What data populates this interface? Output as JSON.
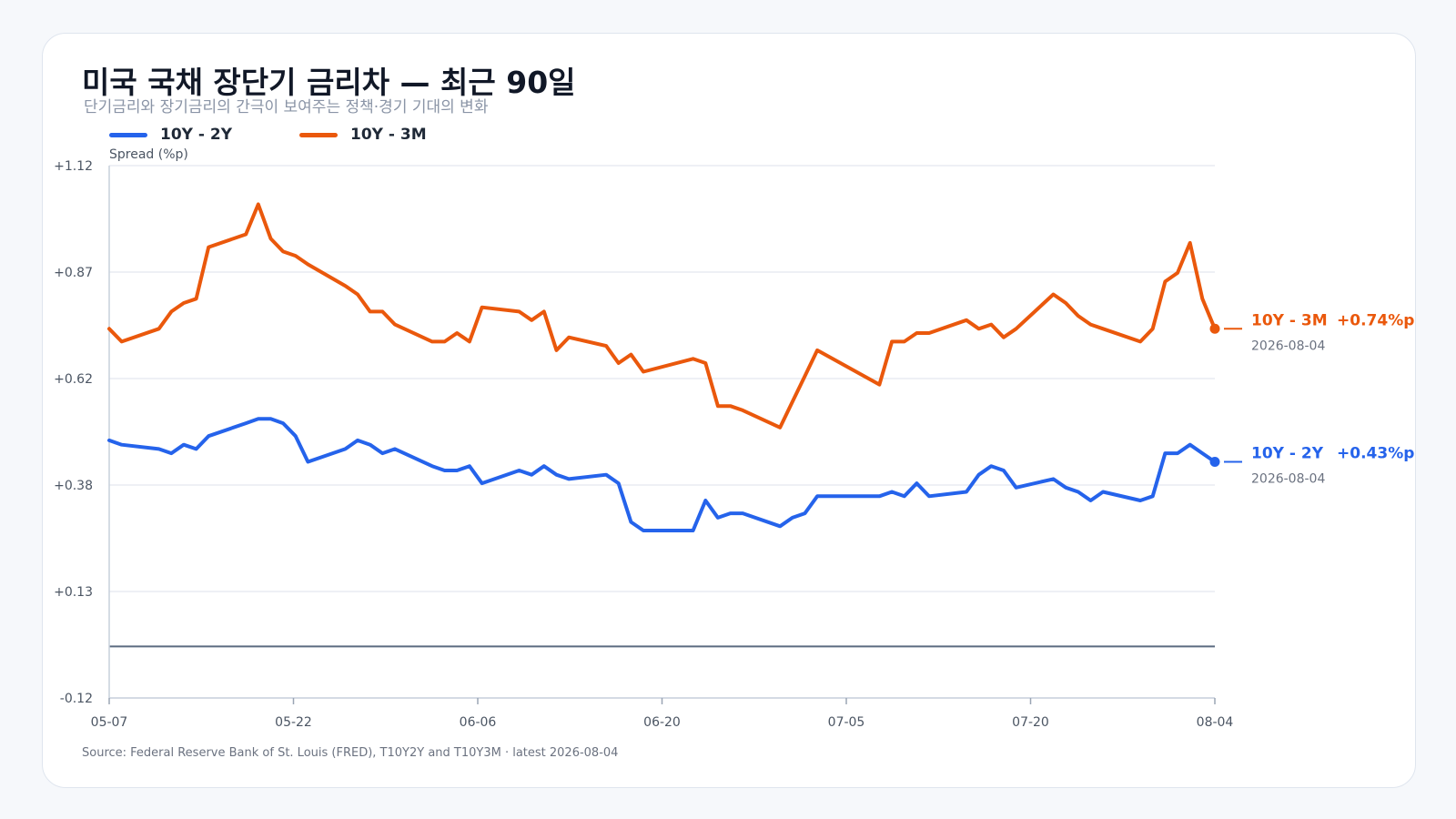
{
  "title": "미국 국채 장단기 금리차 — 최근 90일",
  "subtitle": "단기금리와 장기금리의 간극이 보여주는 정책·경기 기대의 변화",
  "source": "Source: Federal Reserve Bank of St. Louis (FRED), T10Y2Y and T10Y3M · latest 2026-08-04",
  "legend": [
    {
      "label": "10Y - 2Y",
      "color": "#2563eb"
    },
    {
      "label": "10Y - 3M",
      "color": "#ea580c"
    }
  ],
  "end_labels": [
    {
      "name": "10Y - 2Y",
      "value": "+0.43%p",
      "date": "2026-08-04"
    },
    {
      "name": "10Y - 3M",
      "value": "+0.74%p",
      "date": "2026-08-04"
    }
  ],
  "chart_data": {
    "type": "line",
    "ylabel": "Spread (%p)",
    "xlabel": "",
    "ylim": [
      -0.12,
      1.12
    ],
    "yticks": [
      "+1.12",
      "+0.87",
      "+0.62",
      "+0.38",
      "+0.13",
      "-0.12"
    ],
    "xticks": [
      "05-07",
      "05-22",
      "06-06",
      "06-20",
      "07-05",
      "07-20",
      "08-04"
    ],
    "x_range": [
      "2026-05-07",
      "2026-08-04"
    ],
    "grid": true,
    "zero_line": 0,
    "legend_position": "top-left",
    "series": [
      {
        "name": "10Y - 2Y",
        "color": "#2563eb",
        "points": [
          [
            "2026-05-07",
            0.48
          ],
          [
            "2026-05-08",
            0.47
          ],
          [
            "2026-05-11",
            0.46
          ],
          [
            "2026-05-12",
            0.45
          ],
          [
            "2026-05-13",
            0.47
          ],
          [
            "2026-05-14",
            0.46
          ],
          [
            "2026-05-15",
            0.49
          ],
          [
            "2026-05-18",
            0.52
          ],
          [
            "2026-05-19",
            0.53
          ],
          [
            "2026-05-20",
            0.53
          ],
          [
            "2026-05-21",
            0.52
          ],
          [
            "2026-05-22",
            0.49
          ],
          [
            "2026-05-23",
            0.43
          ],
          [
            "2026-05-26",
            0.46
          ],
          [
            "2026-05-27",
            0.48
          ],
          [
            "2026-05-28",
            0.47
          ],
          [
            "2026-05-29",
            0.45
          ],
          [
            "2026-05-30",
            0.46
          ],
          [
            "2026-06-02",
            0.42
          ],
          [
            "2026-06-03",
            0.41
          ],
          [
            "2026-06-04",
            0.41
          ],
          [
            "2026-06-05",
            0.42
          ],
          [
            "2026-06-06",
            0.38
          ],
          [
            "2026-06-09",
            0.41
          ],
          [
            "2026-06-10",
            0.4
          ],
          [
            "2026-06-11",
            0.42
          ],
          [
            "2026-06-12",
            0.4
          ],
          [
            "2026-06-13",
            0.39
          ],
          [
            "2026-06-16",
            0.4
          ],
          [
            "2026-06-17",
            0.38
          ],
          [
            "2026-06-18",
            0.29
          ],
          [
            "2026-06-19",
            0.27
          ],
          [
            "2026-06-23",
            0.27
          ],
          [
            "2026-06-24",
            0.34
          ],
          [
            "2026-06-25",
            0.3
          ],
          [
            "2026-06-26",
            0.31
          ],
          [
            "2026-06-27",
            0.31
          ],
          [
            "2026-06-30",
            0.28
          ],
          [
            "2026-07-01",
            0.3
          ],
          [
            "2026-07-02",
            0.31
          ],
          [
            "2026-07-03",
            0.35
          ],
          [
            "2026-07-08",
            0.35
          ],
          [
            "2026-07-09",
            0.36
          ],
          [
            "2026-07-10",
            0.35
          ],
          [
            "2026-07-11",
            0.38
          ],
          [
            "2026-07-12",
            0.35
          ],
          [
            "2026-07-15",
            0.36
          ],
          [
            "2026-07-16",
            0.4
          ],
          [
            "2026-07-17",
            0.42
          ],
          [
            "2026-07-18",
            0.41
          ],
          [
            "2026-07-19",
            0.37
          ],
          [
            "2026-07-22",
            0.39
          ],
          [
            "2026-07-23",
            0.37
          ],
          [
            "2026-07-24",
            0.36
          ],
          [
            "2026-07-25",
            0.34
          ],
          [
            "2026-07-26",
            0.36
          ],
          [
            "2026-07-29",
            0.34
          ],
          [
            "2026-07-30",
            0.35
          ],
          [
            "2026-07-31",
            0.45
          ],
          [
            "2026-08-01",
            0.45
          ],
          [
            "2026-08-02",
            0.47
          ],
          [
            "2026-08-03",
            0.45
          ],
          [
            "2026-08-04",
            0.43
          ]
        ]
      },
      {
        "name": "10Y - 3M",
        "color": "#ea580c",
        "points": [
          [
            "2026-05-07",
            0.74
          ],
          [
            "2026-05-08",
            0.71
          ],
          [
            "2026-05-11",
            0.74
          ],
          [
            "2026-05-12",
            0.78
          ],
          [
            "2026-05-13",
            0.8
          ],
          [
            "2026-05-14",
            0.81
          ],
          [
            "2026-05-15",
            0.93
          ],
          [
            "2026-05-18",
            0.96
          ],
          [
            "2026-05-19",
            1.03
          ],
          [
            "2026-05-20",
            0.95
          ],
          [
            "2026-05-21",
            0.92
          ],
          [
            "2026-05-22",
            0.91
          ],
          [
            "2026-05-23",
            0.89
          ],
          [
            "2026-05-26",
            0.84
          ],
          [
            "2026-05-27",
            0.82
          ],
          [
            "2026-05-28",
            0.78
          ],
          [
            "2026-05-29",
            0.78
          ],
          [
            "2026-05-30",
            0.75
          ],
          [
            "2026-06-02",
            0.71
          ],
          [
            "2026-06-03",
            0.71
          ],
          [
            "2026-06-04",
            0.73
          ],
          [
            "2026-06-05",
            0.71
          ],
          [
            "2026-06-06",
            0.79
          ],
          [
            "2026-06-09",
            0.78
          ],
          [
            "2026-06-10",
            0.76
          ],
          [
            "2026-06-11",
            0.78
          ],
          [
            "2026-06-12",
            0.69
          ],
          [
            "2026-06-13",
            0.72
          ],
          [
            "2026-06-16",
            0.7
          ],
          [
            "2026-06-17",
            0.66
          ],
          [
            "2026-06-18",
            0.68
          ],
          [
            "2026-06-19",
            0.64
          ],
          [
            "2026-06-23",
            0.67
          ],
          [
            "2026-06-24",
            0.66
          ],
          [
            "2026-06-25",
            0.56
          ],
          [
            "2026-06-26",
            0.56
          ],
          [
            "2026-06-27",
            0.55
          ],
          [
            "2026-06-30",
            0.51
          ],
          [
            "2026-07-01",
            0.57
          ],
          [
            "2026-07-02",
            0.63
          ],
          [
            "2026-07-03",
            0.69
          ],
          [
            "2026-07-08",
            0.61
          ],
          [
            "2026-07-09",
            0.71
          ],
          [
            "2026-07-10",
            0.71
          ],
          [
            "2026-07-11",
            0.73
          ],
          [
            "2026-07-12",
            0.73
          ],
          [
            "2026-07-15",
            0.76
          ],
          [
            "2026-07-16",
            0.74
          ],
          [
            "2026-07-17",
            0.75
          ],
          [
            "2026-07-18",
            0.72
          ],
          [
            "2026-07-19",
            0.74
          ],
          [
            "2026-07-22",
            0.82
          ],
          [
            "2026-07-23",
            0.8
          ],
          [
            "2026-07-24",
            0.77
          ],
          [
            "2026-07-25",
            0.75
          ],
          [
            "2026-07-26",
            0.74
          ],
          [
            "2026-07-29",
            0.71
          ],
          [
            "2026-07-30",
            0.74
          ],
          [
            "2026-07-31",
            0.85
          ],
          [
            "2026-08-01",
            0.87
          ],
          [
            "2026-08-02",
            0.94
          ],
          [
            "2026-08-03",
            0.81
          ],
          [
            "2026-08-04",
            0.74
          ]
        ]
      }
    ]
  }
}
